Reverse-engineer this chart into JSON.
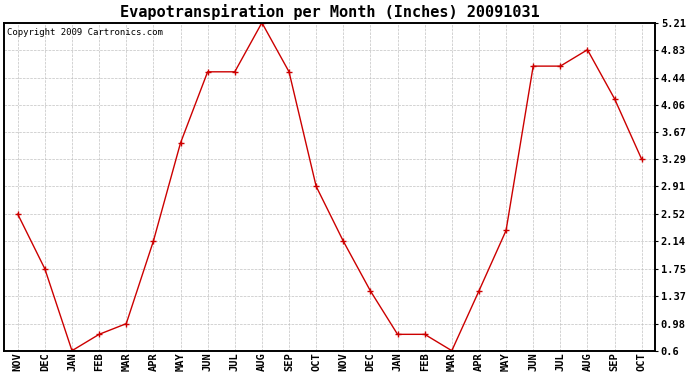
{
  "title": "Evapotranspiration per Month (Inches) 20091031",
  "copyright": "Copyright 2009 Cartronics.com",
  "months": [
    "NOV",
    "DEC",
    "JAN",
    "FEB",
    "MAR",
    "APR",
    "MAY",
    "JUN",
    "JUL",
    "AUG",
    "SEP",
    "OCT",
    "NOV",
    "DEC",
    "JAN",
    "FEB",
    "MAR",
    "APR",
    "MAY",
    "JUN",
    "JUL",
    "AUG",
    "SEP",
    "OCT"
  ],
  "values": [
    2.52,
    1.75,
    0.6,
    0.83,
    0.98,
    2.14,
    3.52,
    4.52,
    4.52,
    5.21,
    4.52,
    2.91,
    2.14,
    1.44,
    0.83,
    0.83,
    0.6,
    1.44,
    2.29,
    4.6,
    4.6,
    4.83,
    4.14,
    3.29
  ],
  "yticks": [
    0.6,
    0.98,
    1.37,
    1.75,
    2.14,
    2.52,
    2.91,
    3.29,
    3.67,
    4.06,
    4.44,
    4.83,
    5.21
  ],
  "line_color": "#CC0000",
  "marker": "+",
  "marker_size": 5,
  "bg_color": "#FFFFFF",
  "grid_color": "#BBBBBB",
  "title_fontsize": 11,
  "copyright_fontsize": 6.5,
  "tick_fontsize": 7.5,
  "ylim_min": 0.6,
  "ylim_max": 5.21
}
